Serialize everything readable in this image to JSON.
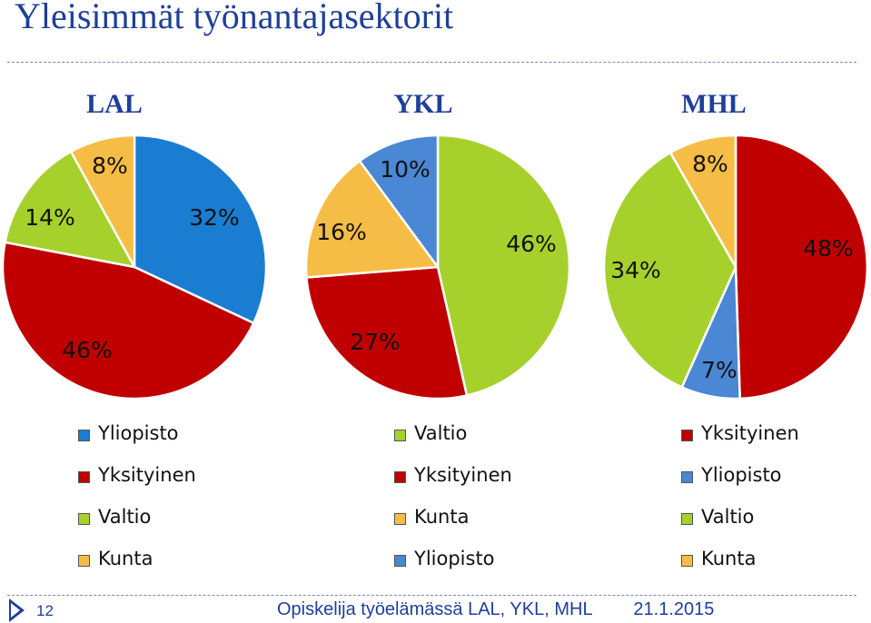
{
  "title": "Yleisimmät työnantajasektorit",
  "footer": {
    "page_number": "12",
    "text": "Opiskelija työelämässä LAL, YKL, MHL",
    "date": "21.1.2015"
  },
  "colors": {
    "Yliopisto": "#1f7fd0",
    "Yksityinen": "#c00000",
    "Valtio": "#a6d12c",
    "Kunta": "#f5bd45",
    "Yliopisto_alt": "#4a87d4"
  },
  "chart_data": [
    {
      "type": "pie",
      "title": "LAL",
      "slices": [
        {
          "label": "Yliopisto",
          "value": 32,
          "display": "32%",
          "color": "#1a7dd1"
        },
        {
          "label": "Yksityinen",
          "value": 46,
          "display": "46%",
          "color": "#c00000"
        },
        {
          "label": "Valtio",
          "value": 14,
          "display": "14%",
          "color": "#a6d12c"
        },
        {
          "label": "Kunta",
          "value": 8,
          "display": "8%",
          "color": "#f5bd45"
        }
      ],
      "legend": [
        "Yliopisto",
        "Yksityinen",
        "Valtio",
        "Kunta"
      ]
    },
    {
      "type": "pie",
      "title": "YKL",
      "slices": [
        {
          "label": "Valtio",
          "value": 46,
          "display": "46%",
          "color": "#a6d12c"
        },
        {
          "label": "Yksityinen",
          "value": 27,
          "display": "27%",
          "color": "#c00000"
        },
        {
          "label": "Kunta",
          "value": 16,
          "display": "16%",
          "color": "#f5bd45"
        },
        {
          "label": "Yliopisto",
          "value": 10,
          "display": "10%",
          "color": "#4a87d4"
        }
      ],
      "legend": [
        "Valtio",
        "Yksityinen",
        "Kunta",
        "Yliopisto"
      ]
    },
    {
      "type": "pie",
      "title": "MHL",
      "slices": [
        {
          "label": "Yksityinen",
          "value": 48,
          "display": "48%",
          "color": "#c00000"
        },
        {
          "label": "Yliopisto",
          "value": 7,
          "display": "7%",
          "color": "#4a87d4"
        },
        {
          "label": "Valtio",
          "value": 34,
          "display": "34%",
          "color": "#a6d12c"
        },
        {
          "label": "Kunta",
          "value": 8,
          "display": "8%",
          "color": "#f5bd45"
        }
      ],
      "legend": [
        "Yksityinen",
        "Yliopisto",
        "Valtio",
        "Kunta"
      ]
    }
  ]
}
